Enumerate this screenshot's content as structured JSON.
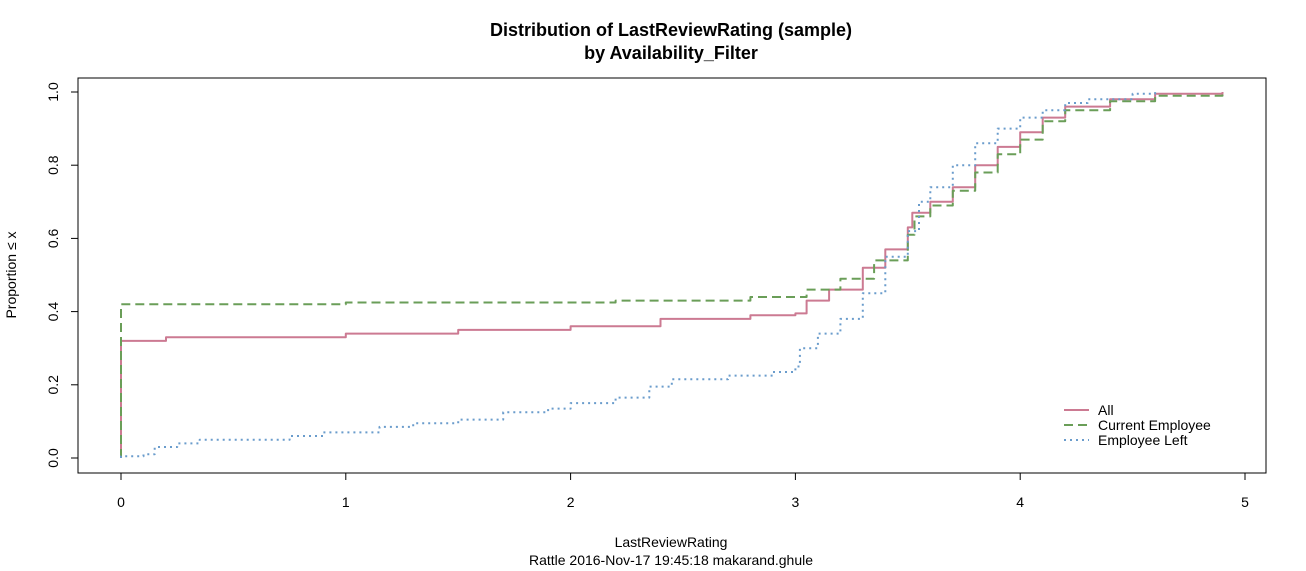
{
  "chart_data": {
    "type": "line",
    "title": "Distribution of LastReviewRating (sample)",
    "subtitle": "by Availability_Filter",
    "xlabel": "LastReviewRating",
    "ylabel": "Proportion ≤ x",
    "footer": "Rattle 2016-Nov-17 19:45:18 makarand.ghule",
    "xlim": [
      0,
      5
    ],
    "ylim": [
      0,
      1
    ],
    "x_ticks": [
      0,
      1,
      2,
      3,
      4,
      5
    ],
    "x_tick_labels": [
      "0",
      "1",
      "2",
      "3",
      "4",
      "5"
    ],
    "y_ticks": [
      0,
      0.2,
      0.4,
      0.6,
      0.8,
      1.0
    ],
    "y_tick_labels": [
      "0.0",
      "0.2",
      "0.4",
      "0.6",
      "0.8",
      "1.0"
    ],
    "grid": false,
    "legend_position": "bottom-right",
    "series": [
      {
        "name": "All",
        "color": "#cc7a92",
        "dash": "solid",
        "points": [
          [
            0,
            0
          ],
          [
            0,
            0.32
          ],
          [
            0.1,
            0.32
          ],
          [
            0.2,
            0.33
          ],
          [
            0.5,
            0.33
          ],
          [
            1.0,
            0.34
          ],
          [
            1.5,
            0.35
          ],
          [
            2.0,
            0.36
          ],
          [
            2.4,
            0.38
          ],
          [
            2.8,
            0.39
          ],
          [
            3.0,
            0.395
          ],
          [
            3.05,
            0.43
          ],
          [
            3.15,
            0.46
          ],
          [
            3.3,
            0.52
          ],
          [
            3.4,
            0.57
          ],
          [
            3.5,
            0.63
          ],
          [
            3.52,
            0.67
          ],
          [
            3.6,
            0.7
          ],
          [
            3.7,
            0.74
          ],
          [
            3.8,
            0.8
          ],
          [
            3.9,
            0.85
          ],
          [
            4.0,
            0.89
          ],
          [
            4.1,
            0.93
          ],
          [
            4.2,
            0.96
          ],
          [
            4.4,
            0.98
          ],
          [
            4.6,
            0.995
          ],
          [
            4.9,
            1.0
          ]
        ]
      },
      {
        "name": "Current Employee",
        "color": "#6a9e58",
        "dash": "dashed",
        "points": [
          [
            0,
            0
          ],
          [
            0,
            0.42
          ],
          [
            0.1,
            0.42
          ],
          [
            0.5,
            0.42
          ],
          [
            0.9,
            0.42
          ],
          [
            1.0,
            0.425
          ],
          [
            1.5,
            0.425
          ],
          [
            2.0,
            0.425
          ],
          [
            2.2,
            0.43
          ],
          [
            2.6,
            0.43
          ],
          [
            2.8,
            0.44
          ],
          [
            3.0,
            0.44
          ],
          [
            3.05,
            0.46
          ],
          [
            3.2,
            0.49
          ],
          [
            3.35,
            0.54
          ],
          [
            3.5,
            0.61
          ],
          [
            3.53,
            0.66
          ],
          [
            3.6,
            0.69
          ],
          [
            3.7,
            0.73
          ],
          [
            3.8,
            0.78
          ],
          [
            3.9,
            0.83
          ],
          [
            4.0,
            0.87
          ],
          [
            4.1,
            0.92
          ],
          [
            4.2,
            0.95
          ],
          [
            4.4,
            0.975
          ],
          [
            4.6,
            0.99
          ],
          [
            4.9,
            1.0
          ]
        ]
      },
      {
        "name": "Employee Left",
        "color": "#6a9ccc",
        "dash": "dotted",
        "points": [
          [
            0,
            0
          ],
          [
            0,
            0.005
          ],
          [
            0.1,
            0.01
          ],
          [
            0.15,
            0.03
          ],
          [
            0.25,
            0.04
          ],
          [
            0.35,
            0.05
          ],
          [
            0.6,
            0.05
          ],
          [
            0.75,
            0.06
          ],
          [
            0.9,
            0.07
          ],
          [
            1.0,
            0.07
          ],
          [
            1.15,
            0.085
          ],
          [
            1.3,
            0.095
          ],
          [
            1.5,
            0.105
          ],
          [
            1.7,
            0.125
          ],
          [
            1.9,
            0.135
          ],
          [
            2.0,
            0.15
          ],
          [
            2.2,
            0.165
          ],
          [
            2.35,
            0.195
          ],
          [
            2.45,
            0.215
          ],
          [
            2.7,
            0.225
          ],
          [
            2.9,
            0.235
          ],
          [
            3.0,
            0.25
          ],
          [
            3.02,
            0.3
          ],
          [
            3.1,
            0.34
          ],
          [
            3.2,
            0.38
          ],
          [
            3.3,
            0.45
          ],
          [
            3.4,
            0.55
          ],
          [
            3.5,
            0.62
          ],
          [
            3.55,
            0.7
          ],
          [
            3.6,
            0.74
          ],
          [
            3.7,
            0.8
          ],
          [
            3.8,
            0.86
          ],
          [
            3.9,
            0.9
          ],
          [
            4.0,
            0.93
          ],
          [
            4.1,
            0.95
          ],
          [
            4.2,
            0.97
          ],
          [
            4.3,
            0.98
          ],
          [
            4.5,
            0.995
          ],
          [
            4.6,
            1.0
          ]
        ]
      }
    ]
  }
}
